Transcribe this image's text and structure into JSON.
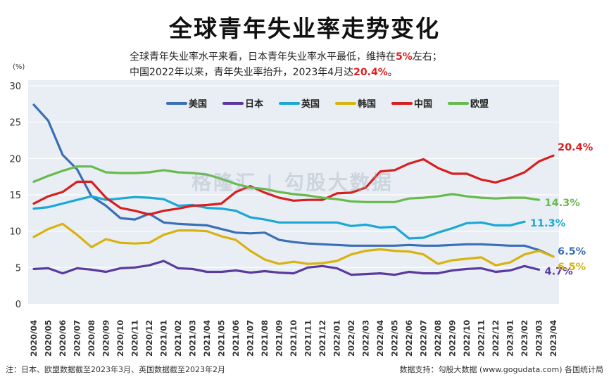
{
  "title": "全球青年失业率走势变化",
  "subtitle_1": {
    "pre": "全球青年失业率水平来看，日本青年失业率水平最低，维持在",
    "highlight": "5%",
    "post": "左右；"
  },
  "subtitle_2": {
    "pre": "中国2022年以来，青年失业率抬升，2023年4月达",
    "highlight": "20.4%",
    "post": "。"
  },
  "watermark": "格隆汇 | 勾股大数据",
  "footnote_left": "注：日本、欧盟数据截至2023年3月、英国数据截至2023年2月",
  "footnote_right": "数据支持：勾股大数据  (www.gogudata.com)  各国统计局",
  "chart_data": {
    "type": "line",
    "ylabel": "(%)",
    "ylim": [
      0,
      30
    ],
    "yticks": [
      0,
      5,
      10,
      15,
      20,
      25,
      30
    ],
    "grid": true,
    "legend_position": "top",
    "categories": [
      "2020/04",
      "2020/05",
      "2020/06",
      "2020/07",
      "2020/08",
      "2020/09",
      "2020/10",
      "2020/11",
      "2020/12",
      "2021/01",
      "2021/02",
      "2021/03",
      "2021/04",
      "2021/05",
      "2021/06",
      "2021/07",
      "2021/08",
      "2021/09",
      "2021/10",
      "2021/11",
      "2021/12",
      "2022/01",
      "2022/02",
      "2022/03",
      "2022/04",
      "2022/05",
      "2022/06",
      "2022/07",
      "2022/08",
      "2022/09",
      "2022/10",
      "2022/11",
      "2022/12",
      "2023/01",
      "2023/02",
      "2023/03",
      "2023/04"
    ],
    "series": [
      {
        "name": "美国",
        "color": "#3a6fb5",
        "end_label": "6.5%",
        "values": [
          27.4,
          25.2,
          20.5,
          18.5,
          14.8,
          13.5,
          11.8,
          11.6,
          12.4,
          11.2,
          11.0,
          10.9,
          10.8,
          10.3,
          9.8,
          9.7,
          9.8,
          8.8,
          8.5,
          8.3,
          8.2,
          8.1,
          8.0,
          8.0,
          8.0,
          8.0,
          8.1,
          8.0,
          8.0,
          8.1,
          8.2,
          8.2,
          8.1,
          8.0,
          8.0,
          7.4,
          6.5
        ]
      },
      {
        "name": "日本",
        "color": "#5b3a9e",
        "end_label": "4.7%",
        "values": [
          4.8,
          4.9,
          4.2,
          4.9,
          4.7,
          4.4,
          4.9,
          5.0,
          5.3,
          5.9,
          4.9,
          4.8,
          4.4,
          4.4,
          4.6,
          4.3,
          4.5,
          4.3,
          4.2,
          5.0,
          5.2,
          4.9,
          4.0,
          4.1,
          4.2,
          4.0,
          4.4,
          4.2,
          4.2,
          4.6,
          4.8,
          4.9,
          4.4,
          4.6,
          5.2,
          4.7,
          null
        ]
      },
      {
        "name": "英国",
        "color": "#1ba8d6",
        "end_label": "11.3%",
        "values": [
          13.1,
          13.3,
          13.8,
          14.3,
          14.8,
          14.3,
          14.5,
          14.7,
          14.6,
          14.4,
          13.5,
          13.6,
          13.2,
          13.1,
          12.8,
          11.9,
          11.6,
          11.2,
          11.2,
          11.2,
          11.2,
          11.2,
          10.7,
          10.9,
          10.5,
          10.6,
          9.0,
          9.1,
          9.8,
          10.4,
          11.1,
          11.2,
          10.8,
          10.8,
          11.3,
          null,
          null
        ]
      },
      {
        "name": "韩国",
        "color": "#d9b20f",
        "end_label": "6.5%",
        "values": [
          9.2,
          10.3,
          11.0,
          9.5,
          7.8,
          8.9,
          8.4,
          8.3,
          8.4,
          9.5,
          10.1,
          10.1,
          10.0,
          9.3,
          8.8,
          7.3,
          6.1,
          5.5,
          5.8,
          5.5,
          5.6,
          5.9,
          6.8,
          7.3,
          7.5,
          7.3,
          7.2,
          6.8,
          5.5,
          6.0,
          6.2,
          6.4,
          5.3,
          5.7,
          6.8,
          7.3,
          6.5
        ]
      },
      {
        "name": "中国",
        "color": "#d81e1e",
        "end_label": "20.4%",
        "values": [
          13.8,
          14.8,
          15.4,
          16.8,
          16.8,
          14.6,
          13.2,
          12.8,
          12.3,
          12.8,
          13.1,
          13.5,
          13.6,
          13.8,
          15.4,
          16.2,
          15.3,
          14.6,
          14.2,
          14.3,
          14.3,
          15.2,
          15.3,
          16.0,
          18.2,
          18.4,
          19.3,
          19.9,
          18.7,
          17.9,
          17.9,
          17.1,
          16.7,
          17.3,
          18.1,
          19.6,
          20.4
        ]
      },
      {
        "name": "欧盟",
        "color": "#66bb4c",
        "end_label": "14.3%",
        "values": [
          16.8,
          17.6,
          18.3,
          18.9,
          18.9,
          18.1,
          18.0,
          18.0,
          18.1,
          18.4,
          18.1,
          18.0,
          17.8,
          17.2,
          16.5,
          16.0,
          15.8,
          15.4,
          15.1,
          14.9,
          14.6,
          14.4,
          14.1,
          14.0,
          14.0,
          14.0,
          14.5,
          14.6,
          14.8,
          15.1,
          14.8,
          14.6,
          14.5,
          14.6,
          14.6,
          14.3,
          null
        ]
      }
    ]
  }
}
